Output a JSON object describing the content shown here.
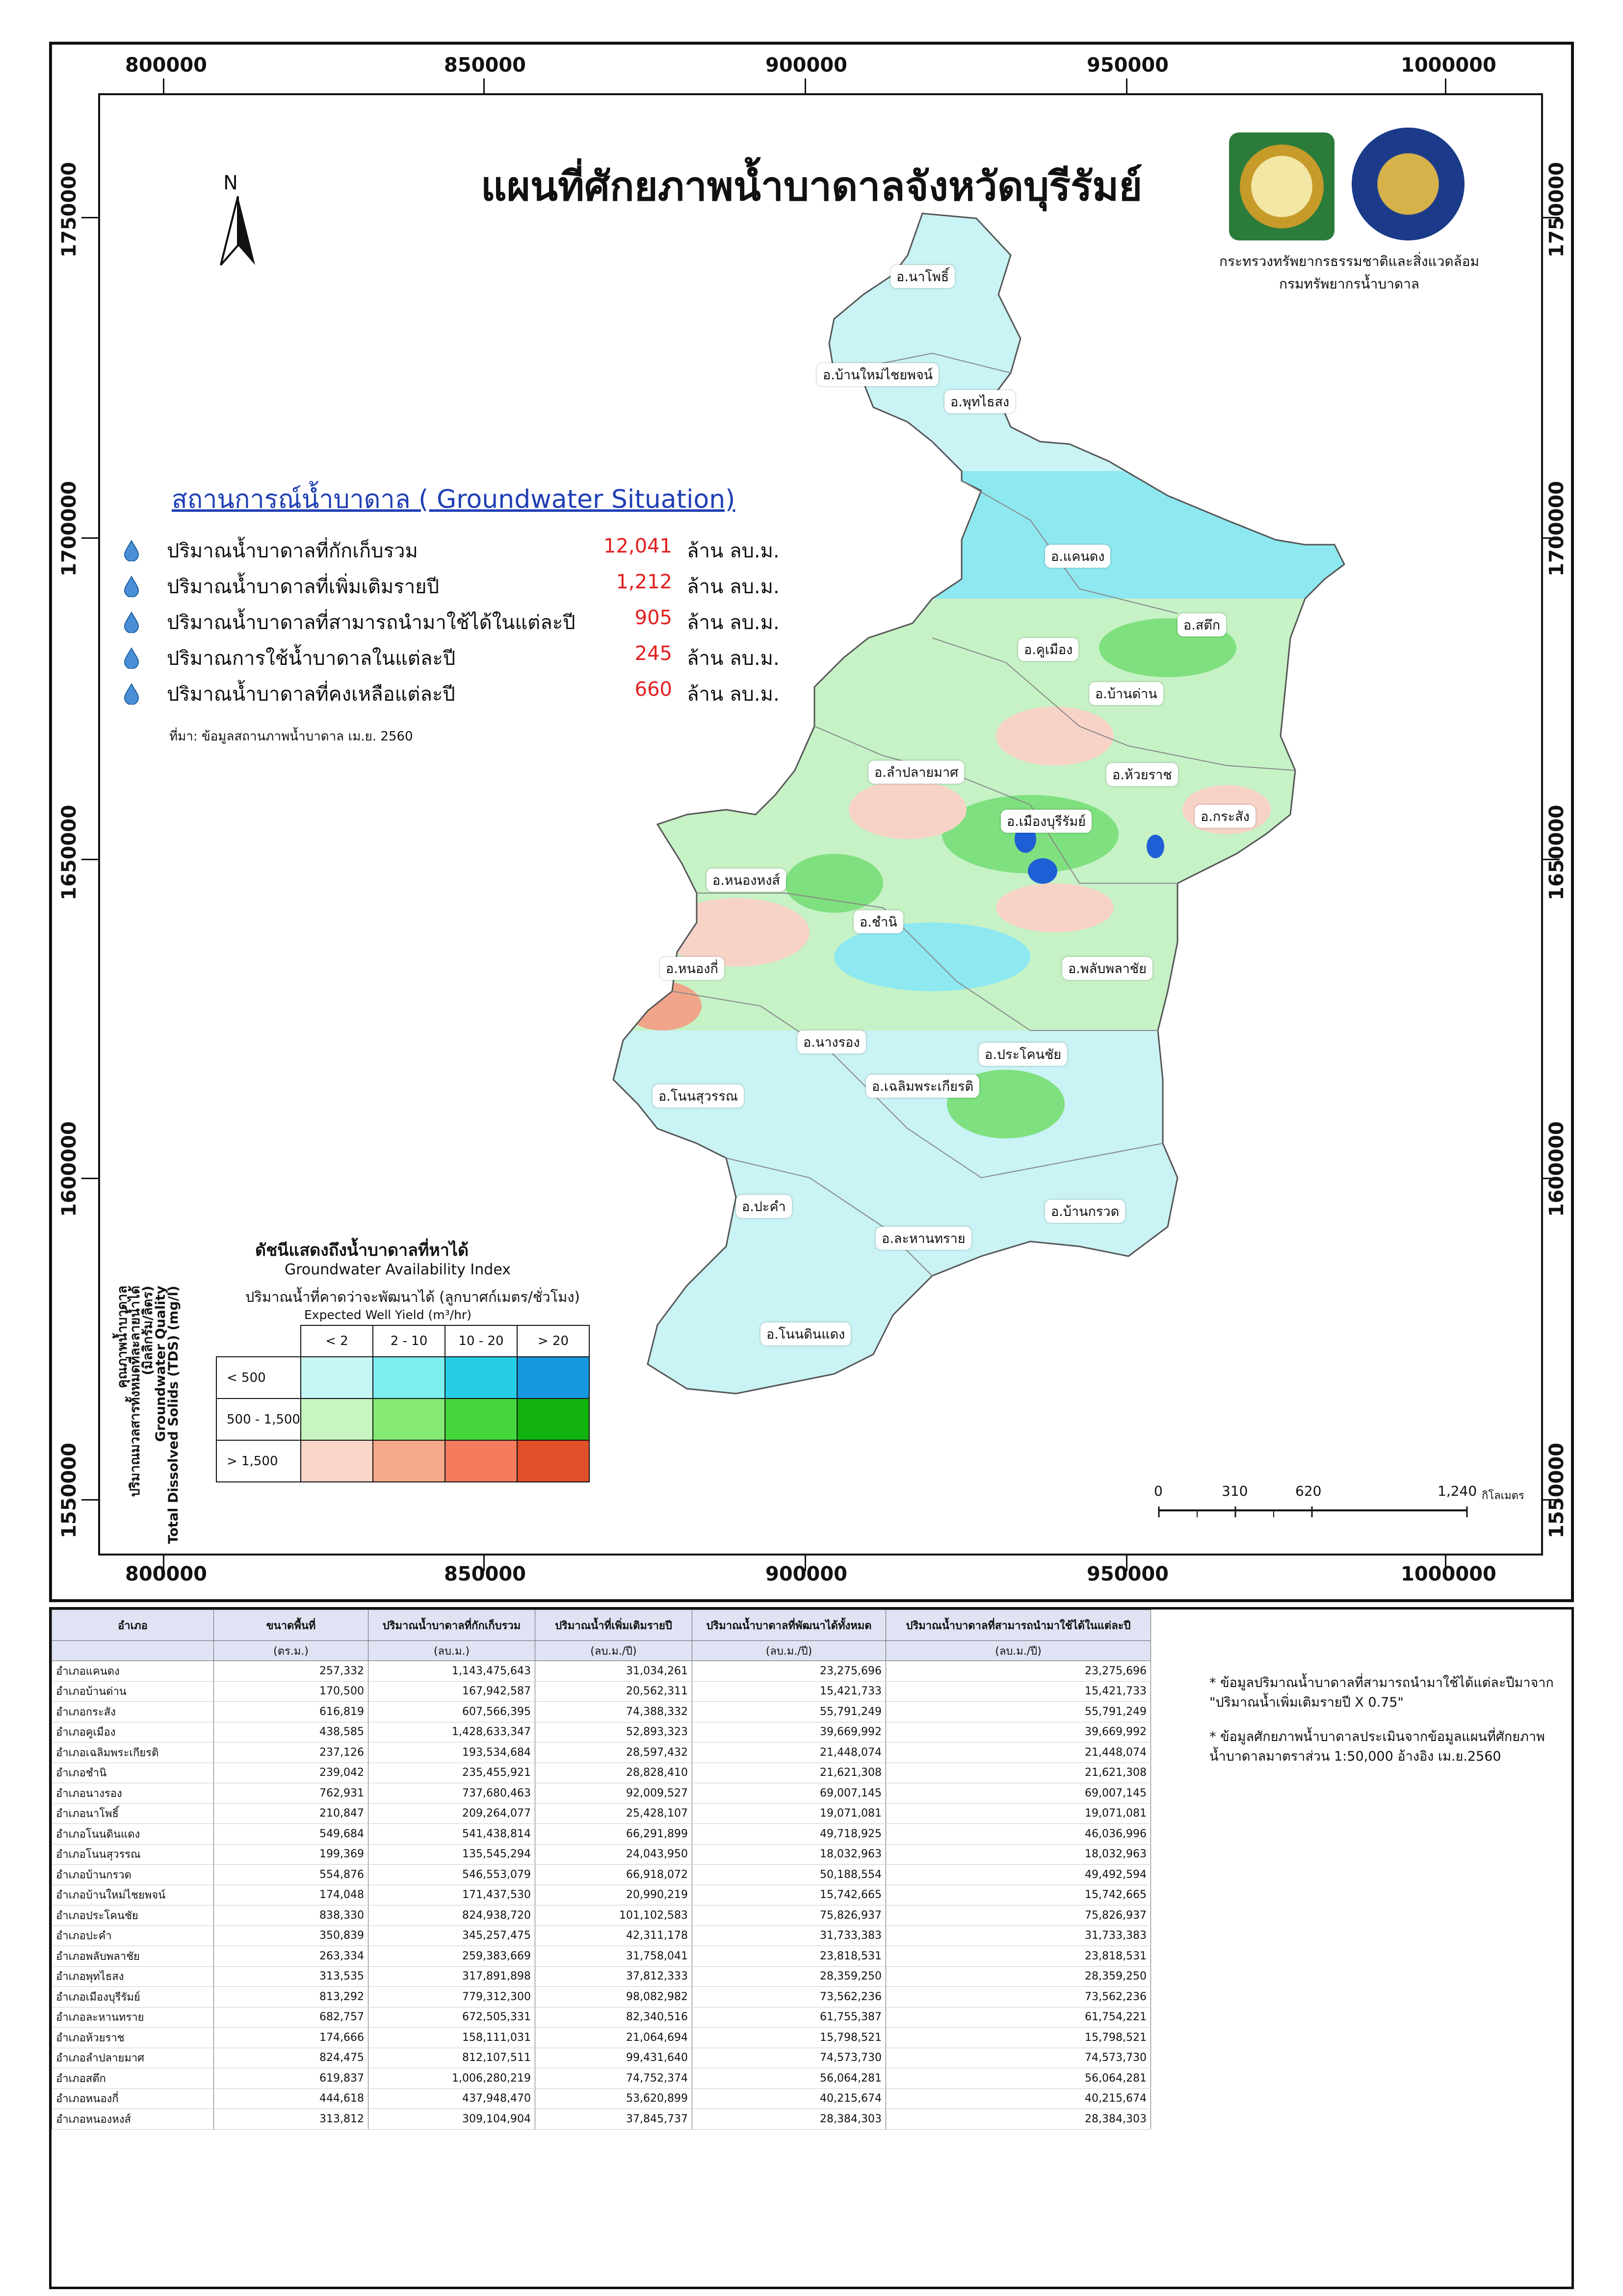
{
  "map": {
    "title": "แผนที่ศักยภาพน้ำบาดาลจังหวัดบุรีรัมย์",
    "north_label": "N",
    "org_lines": [
      "กระทรวงทรัพยากรธรรมชาติและสิ่งแวดล้อม",
      "กรมทรัพยากรน้ำบาดาล"
    ],
    "x_coords": [
      "800000",
      "850000",
      "900000",
      "950000",
      "1000000"
    ],
    "y_coords": [
      "1750000",
      "1700000",
      "1650000",
      "1600000",
      "1550000"
    ],
    "districts": [
      {
        "name": "อ.นาโพธิ์"
      },
      {
        "name": "อ.บ้านใหม่ไชยพจน์"
      },
      {
        "name": "อ.พุทไธสง"
      },
      {
        "name": "อ.แคนดง"
      },
      {
        "name": "อ.สตึก"
      },
      {
        "name": "อ.คูเมือง"
      },
      {
        "name": "อ.บ้านด่าน"
      },
      {
        "name": "อ.ลำปลายมาศ"
      },
      {
        "name": "อ.ห้วยราช"
      },
      {
        "name": "อ.เมืองบุรีรัมย์"
      },
      {
        "name": "อ.กระสัง"
      },
      {
        "name": "อ.หนองหงส์"
      },
      {
        "name": "อ.ชำนิ"
      },
      {
        "name": "อ.หนองกี่"
      },
      {
        "name": "อ.พลับพลาชัย"
      },
      {
        "name": "อ.นางรอง"
      },
      {
        "name": "อ.ประโคนชัย"
      },
      {
        "name": "อ.โนนสุวรรณ"
      },
      {
        "name": "อ.เฉลิมพระเกียรติ"
      },
      {
        "name": "อ.ปะคำ"
      },
      {
        "name": "อ.บ้านกรวด"
      },
      {
        "name": "อ.ละหานทราย"
      },
      {
        "name": "อ.โนนดินแดง"
      }
    ],
    "colors": {
      "water_low": "#c9f3f5",
      "water_mid": "#8ee8f0",
      "green_light": "#c6f2c6",
      "green_mid": "#7fe07f",
      "pink_light": "#f7d3c7",
      "pink_mid": "#f0a58a",
      "lake_blue": "#1f5fd6"
    }
  },
  "groundwater": {
    "heading": "สถานการณ์น้ำบาดาล ( Groundwater Situation)",
    "items": [
      {
        "label": "ปริมาณน้ำบาดาลที่กักเก็บรวม",
        "value": "12,041",
        "unit": "ล้าน ลบ.ม."
      },
      {
        "label": "ปริมาณน้ำบาดาลที่เพิ่มเติมรายปี",
        "value": "1,212",
        "unit": "ล้าน ลบ.ม."
      },
      {
        "label": "ปริมาณน้ำบาดาลที่สามารถนำมาใช้ได้ในแต่ละปี",
        "value": "905",
        "unit": "ล้าน ลบ.ม."
      },
      {
        "label": "ปริมาณการใช้น้ำบาดาลในแต่ละปี",
        "value": "245",
        "unit": "ล้าน ลบ.ม."
      },
      {
        "label": "ปริมาณน้ำบาดาลที่คงเหลือแต่ละปี",
        "value": "660",
        "unit": "ล้าน ลบ.ม."
      }
    ],
    "source": "ที่มา: ข้อมูลสถานภาพน้ำบาดาล เม.ย. 2560"
  },
  "legend": {
    "title_th": "ดัชนีแสดงถึงน้ำบาดาลที่หาได้",
    "title_en": "Groundwater Availability Index",
    "sub_th": "ปริมาณน้ำที่คาดว่าจะพัฒนาได้ (ลูกบาศก์เมตร/ชั่วโมง)",
    "sub_en": "Expected Well Yield (m³/hr)",
    "left_lines": [
      "คุณภาพน้ำบาดาล",
      "ปริมาณมวลสารทั้งหมดที่ละลายน้ำได้",
      "(มิลลิกรัม/ลิตร)",
      "Groundwater Quality",
      "Total Dissolved Solids (TDS) (mg/l)"
    ],
    "cols": [
      "< 2",
      "2 - 10",
      "10 - 20",
      "> 20"
    ],
    "rows": [
      {
        "label": "< 500",
        "colors": [
          "#c6f6f6",
          "#7eeef0",
          "#26cde6",
          "#1797e0"
        ]
      },
      {
        "label": "500 - 1,500",
        "colors": [
          "#c8f5c2",
          "#85ea74",
          "#45d63c",
          "#12b30e"
        ]
      },
      {
        "label": "> 1,500",
        "colors": [
          "#f8d6c9",
          "#f3a98a",
          "#f47b5d",
          "#e14f2a"
        ]
      }
    ]
  },
  "scale": {
    "labels": [
      "0",
      "310",
      "620",
      "1,240"
    ],
    "unit": "กิโลเมตร"
  },
  "table": {
    "headers": [
      "อำเภอ",
      "ขนาดพื้นที่",
      "ปริมาณน้ำบาดาลที่กักเก็บรวม",
      "ปริมาณน้ำที่เพิ่มเติมรายปี",
      "ปริมาณน้ำบาดาลที่พัฒนาได้ทั้งหมด",
      "ปริมาณน้ำบาดาลที่สามารถนำมาใช้ได้ในแต่ละปี"
    ],
    "units": [
      "",
      "(ตร.ม.)",
      "(ลบ.ม.)",
      "(ลบ.ม./ปี)",
      "(ลบ.ม./ปี)",
      "(ลบ.ม./ปี)"
    ],
    "rows": [
      [
        "อำเภอแคนดง",
        "257,332",
        "1,143,475,643",
        "31,034,261",
        "23,275,696",
        "23,275,696"
      ],
      [
        "อำเภอบ้านด่าน",
        "170,500",
        "167,942,587",
        "20,562,311",
        "15,421,733",
        "15,421,733"
      ],
      [
        "อำเภอกระสัง",
        "616,819",
        "607,566,395",
        "74,388,332",
        "55,791,249",
        "55,791,249"
      ],
      [
        "อำเภอคูเมือง",
        "438,585",
        "1,428,633,347",
        "52,893,323",
        "39,669,992",
        "39,669,992"
      ],
      [
        "อำเภอเฉลิมพระเกียรติ",
        "237,126",
        "193,534,684",
        "28,597,432",
        "21,448,074",
        "21,448,074"
      ],
      [
        "อำเภอชำนิ",
        "239,042",
        "235,455,921",
        "28,828,410",
        "21,621,308",
        "21,621,308"
      ],
      [
        "อำเภอนางรอง",
        "762,931",
        "737,680,463",
        "92,009,527",
        "69,007,145",
        "69,007,145"
      ],
      [
        "อำเภอนาโพธิ์",
        "210,847",
        "209,264,077",
        "25,428,107",
        "19,071,081",
        "19,071,081"
      ],
      [
        "อำเภอโนนดินแดง",
        "549,684",
        "541,438,814",
        "66,291,899",
        "49,718,925",
        "46,036,996"
      ],
      [
        "อำเภอโนนสุวรรณ",
        "199,369",
        "135,545,294",
        "24,043,950",
        "18,032,963",
        "18,032,963"
      ],
      [
        "อำเภอบ้านกรวด",
        "554,876",
        "546,553,079",
        "66,918,072",
        "50,188,554",
        "49,492,594"
      ],
      [
        "อำเภอบ้านใหม่ไชยพจน์",
        "174,048",
        "171,437,530",
        "20,990,219",
        "15,742,665",
        "15,742,665"
      ],
      [
        "อำเภอประโคนชัย",
        "838,330",
        "824,938,720",
        "101,102,583",
        "75,826,937",
        "75,826,937"
      ],
      [
        "อำเภอปะคำ",
        "350,839",
        "345,257,475",
        "42,311,178",
        "31,733,383",
        "31,733,383"
      ],
      [
        "อำเภอพลับพลาชัย",
        "263,334",
        "259,383,669",
        "31,758,041",
        "23,818,531",
        "23,818,531"
      ],
      [
        "อำเภอพุทไธสง",
        "313,535",
        "317,891,898",
        "37,812,333",
        "28,359,250",
        "28,359,250"
      ],
      [
        "อำเภอเมืองบุรีรัมย์",
        "813,292",
        "779,312,300",
        "98,082,982",
        "73,562,236",
        "73,562,236"
      ],
      [
        "อำเภอละหานทราย",
        "682,757",
        "672,505,331",
        "82,340,516",
        "61,755,387",
        "61,754,221"
      ],
      [
        "อำเภอห้วยราช",
        "174,666",
        "158,111,031",
        "21,064,694",
        "15,798,521",
        "15,798,521"
      ],
      [
        "อำเภอลำปลายมาศ",
        "824,475",
        "812,107,511",
        "99,431,640",
        "74,573,730",
        "74,573,730"
      ],
      [
        "อำเภอสตึก",
        "619,837",
        "1,006,280,219",
        "74,752,374",
        "56,064,281",
        "56,064,281"
      ],
      [
        "อำเภอหนองกี่",
        "444,618",
        "437,948,470",
        "53,620,899",
        "40,215,674",
        "40,215,674"
      ],
      [
        "อำเภอหนองหงส์",
        "313,812",
        "309,104,904",
        "37,845,737",
        "28,384,303",
        "28,384,303"
      ]
    ],
    "notes": [
      "* ข้อมูลปริมาณน้ำบาดาลที่สามารถนำมาใช้ได้แต่ละปีมาจาก \"ปริมาณน้ำเพิ่มเติมรายปี X 0.75\"",
      "* ข้อมูลศักยภาพน้ำบาดาลประเมินจากข้อมูลแผนที่ศักยภาพ น้ำบาดาลมาตราส่วน 1:50,000 อ้างอิง เม.ย.2560"
    ]
  }
}
